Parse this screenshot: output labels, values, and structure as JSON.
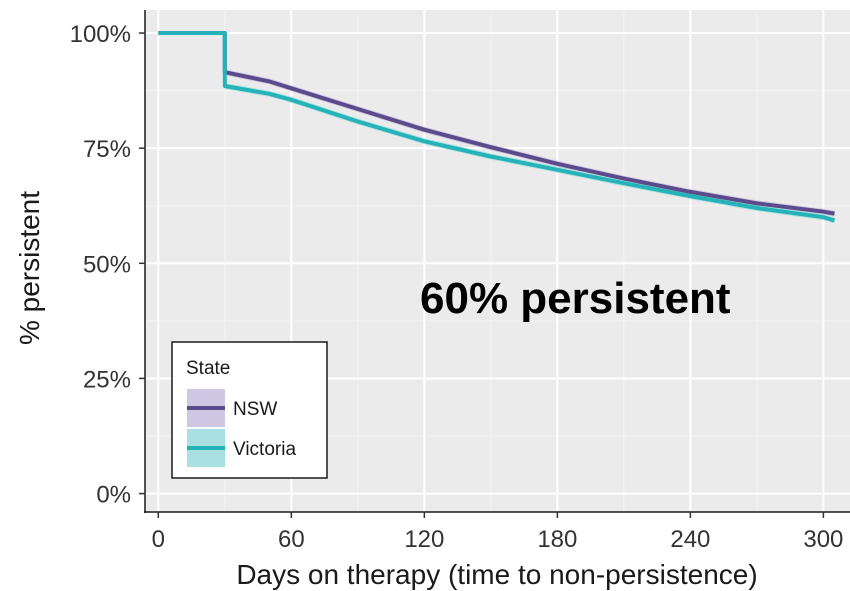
{
  "chart_data": {
    "type": "line",
    "title": "",
    "xlabel": "Days on therapy (time to non-persistence)",
    "ylabel": "% persistent",
    "xlim": [
      -6,
      312
    ],
    "ylim": [
      -0.04,
      1.05
    ],
    "x_ticks": [
      0,
      60,
      120,
      180,
      240,
      300
    ],
    "x_tick_labels": [
      "0",
      "60",
      "120",
      "180",
      "240",
      "300"
    ],
    "y_ticks": [
      0,
      0.25,
      0.5,
      0.75,
      1.0
    ],
    "y_tick_labels": [
      "0%",
      "25%",
      "50%",
      "75%",
      "100%"
    ],
    "grid": true,
    "background": "#ebebeb",
    "annotation": "60% persistent",
    "legend": {
      "title": "State",
      "position": "bottom-left"
    },
    "series": [
      {
        "name": "NSW",
        "color": "#5b4b8a",
        "band_color": "#cfc7e3",
        "x": [
          0,
          30,
          30,
          50,
          60,
          90,
          120,
          150,
          180,
          210,
          240,
          270,
          300,
          305
        ],
        "y": [
          1.0,
          1.0,
          0.915,
          0.895,
          0.88,
          0.835,
          0.79,
          0.752,
          0.716,
          0.684,
          0.655,
          0.63,
          0.612,
          0.608
        ]
      },
      {
        "name": "Victoria",
        "color": "#26b3b8",
        "band_color": "#a9e0e2",
        "x": [
          0,
          30,
          30,
          50,
          60,
          90,
          120,
          150,
          180,
          210,
          240,
          270,
          300,
          305
        ],
        "y": [
          1.0,
          1.0,
          0.885,
          0.868,
          0.855,
          0.808,
          0.765,
          0.732,
          0.703,
          0.674,
          0.646,
          0.62,
          0.6,
          0.593
        ]
      }
    ]
  }
}
